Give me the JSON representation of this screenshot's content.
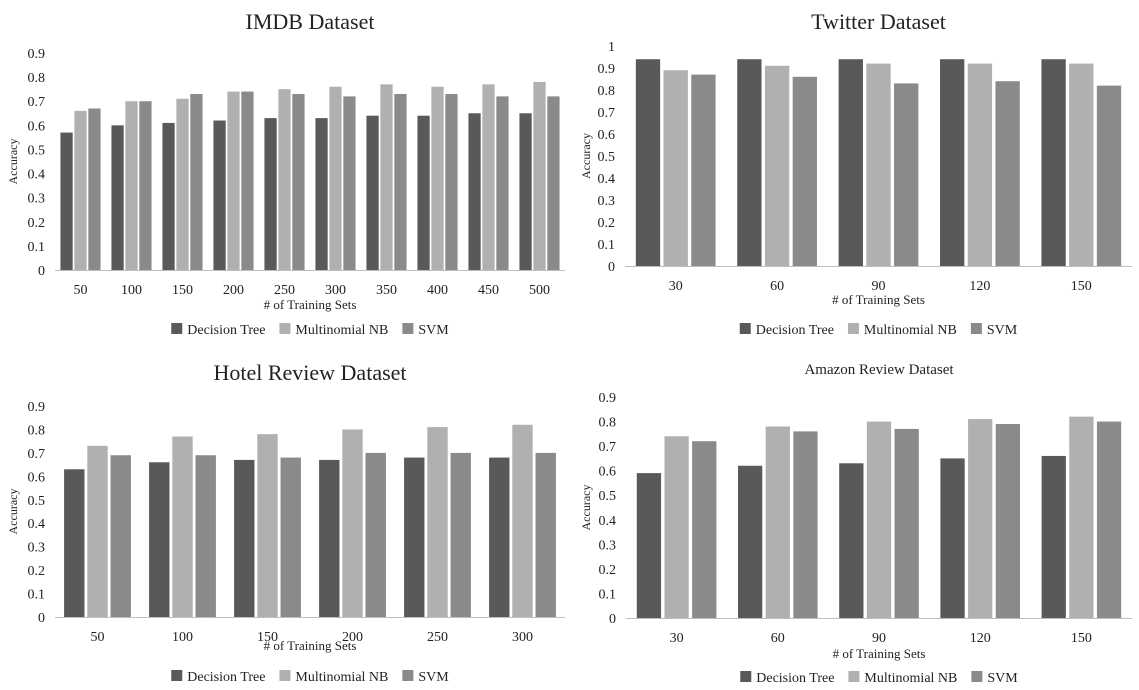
{
  "colors": {
    "decision_tree": "#595959",
    "multinomial_nb": "#b0b0b0",
    "svm": "#8a8a8a",
    "axis": "#bfbfbf",
    "text": "#222222"
  },
  "chart_data": [
    {
      "type": "bar",
      "title": "IMDB Dataset",
      "xlabel": "# of Training Sets",
      "ylabel": "Accuracy",
      "ylim": [
        0,
        0.9
      ],
      "yticks": [
        "0",
        "0.1",
        "0.2",
        "0.3",
        "0.4",
        "0.5",
        "0.6",
        "0.7",
        "0.8",
        "0.9"
      ],
      "grid": false,
      "legend_position": "bottom",
      "categories": [
        "50",
        "100",
        "150",
        "200",
        "250",
        "300",
        "350",
        "400",
        "450",
        "500"
      ],
      "series": [
        {
          "name": "Decision Tree",
          "values": [
            0.57,
            0.6,
            0.61,
            0.62,
            0.63,
            0.63,
            0.64,
            0.64,
            0.65,
            0.65
          ]
        },
        {
          "name": "Multinomial NB",
          "values": [
            0.66,
            0.7,
            0.71,
            0.74,
            0.75,
            0.76,
            0.77,
            0.76,
            0.77,
            0.78
          ]
        },
        {
          "name": "SVM",
          "values": [
            0.67,
            0.7,
            0.73,
            0.74,
            0.73,
            0.72,
            0.73,
            0.73,
            0.72,
            0.72
          ]
        }
      ]
    },
    {
      "type": "bar",
      "title": "Twitter Dataset",
      "xlabel": "# of Training Sets",
      "ylabel": "Accuracy",
      "ylim": [
        0,
        1
      ],
      "yticks": [
        "0",
        "0.1",
        "0.2",
        "0.3",
        "0.4",
        "0.5",
        "0.6",
        "0.7",
        "0.8",
        "0.9",
        "1"
      ],
      "grid": false,
      "legend_position": "bottom",
      "categories": [
        "30",
        "60",
        "90",
        "120",
        "150"
      ],
      "series": [
        {
          "name": "Decision Tree",
          "values": [
            0.94,
            0.94,
            0.94,
            0.94,
            0.94
          ]
        },
        {
          "name": "Multinomial NB",
          "values": [
            0.89,
            0.91,
            0.92,
            0.92,
            0.92
          ]
        },
        {
          "name": "SVM",
          "values": [
            0.87,
            0.86,
            0.83,
            0.84,
            0.82
          ]
        }
      ]
    },
    {
      "type": "bar",
      "title": "Hotel Review Dataset",
      "xlabel": "# of Training Sets",
      "ylabel": "Accuracy",
      "ylim": [
        0,
        0.9
      ],
      "yticks": [
        "0",
        "0.1",
        "0.2",
        "0.3",
        "0.4",
        "0.5",
        "0.6",
        "0.7",
        "0.8",
        "0.9"
      ],
      "grid": false,
      "legend_position": "bottom",
      "categories": [
        "50",
        "100",
        "150",
        "200",
        "250",
        "300"
      ],
      "series": [
        {
          "name": "Decision Tree",
          "values": [
            0.63,
            0.66,
            0.67,
            0.67,
            0.68,
            0.68
          ]
        },
        {
          "name": "Multinomial NB",
          "values": [
            0.73,
            0.77,
            0.78,
            0.8,
            0.81,
            0.82
          ]
        },
        {
          "name": "SVM",
          "values": [
            0.69,
            0.69,
            0.68,
            0.7,
            0.7,
            0.7
          ]
        }
      ]
    },
    {
      "type": "bar",
      "title": "Amazon Review Dataset",
      "xlabel": "# of Training Sets",
      "ylabel": "Accuracy",
      "ylim": [
        0,
        0.9
      ],
      "yticks": [
        "0",
        "0.1",
        "0.2",
        "0.3",
        "0.4",
        "0.5",
        "0.6",
        "0.7",
        "0.8",
        "0.9"
      ],
      "grid": false,
      "legend_position": "bottom",
      "categories": [
        "30",
        "60",
        "90",
        "120",
        "150"
      ],
      "series": [
        {
          "name": "Decision Tree",
          "values": [
            0.59,
            0.62,
            0.63,
            0.65,
            0.66
          ]
        },
        {
          "name": "Multinomial NB",
          "values": [
            0.74,
            0.78,
            0.8,
            0.81,
            0.82
          ]
        },
        {
          "name": "SVM",
          "values": [
            0.72,
            0.76,
            0.77,
            0.79,
            0.8
          ]
        }
      ]
    }
  ]
}
